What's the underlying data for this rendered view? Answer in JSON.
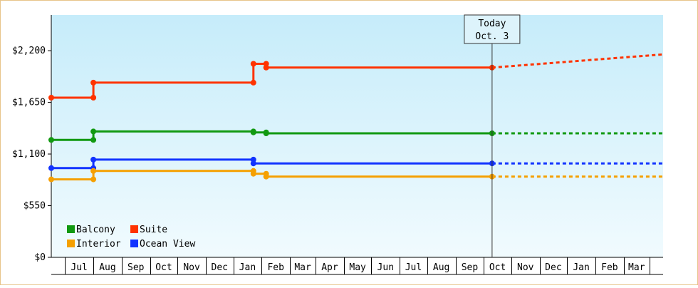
{
  "chart_data": {
    "type": "line",
    "title": "",
    "xlabel": "",
    "ylabel": "",
    "y_ticks": [
      "$0",
      "$550",
      "$1,100",
      "$1,650",
      "$2,200"
    ],
    "y_tick_values": [
      0,
      550,
      1100,
      1650,
      2200
    ],
    "ylim": [
      0,
      2580
    ],
    "x_range": [
      "2024-06-08",
      "2026-04-08"
    ],
    "months": [
      {
        "label": "Jul",
        "start": "2024-06-23",
        "end": "2024-07-24"
      },
      {
        "label": "Aug",
        "start": "2024-07-24",
        "end": "2024-08-24"
      },
      {
        "label": "Sep",
        "start": "2024-08-24",
        "end": "2024-09-24"
      },
      {
        "label": "Oct",
        "start": "2024-09-24",
        "end": "2024-10-24"
      },
      {
        "label": "Nov",
        "start": "2024-10-24",
        "end": "2024-11-24"
      },
      {
        "label": "Dec",
        "start": "2024-11-24",
        "end": "2024-12-24"
      },
      {
        "label": "Jan",
        "start": "2024-12-24",
        "end": "2025-01-24"
      },
      {
        "label": "Feb",
        "start": "2025-01-24",
        "end": "2025-02-24"
      },
      {
        "label": "Mar",
        "start": "2025-02-24",
        "end": "2025-03-24"
      },
      {
        "label": "Apr",
        "start": "2025-03-24",
        "end": "2025-04-24"
      },
      {
        "label": "May",
        "start": "2025-04-24",
        "end": "2025-05-24"
      },
      {
        "label": "Jun",
        "start": "2025-05-24",
        "end": "2025-06-24"
      },
      {
        "label": "Jul",
        "start": "2025-06-24",
        "end": "2025-07-24"
      },
      {
        "label": "Aug",
        "start": "2025-07-24",
        "end": "2025-08-24"
      },
      {
        "label": "Sep",
        "start": "2025-08-24",
        "end": "2025-09-24"
      },
      {
        "label": "Oct",
        "start": "2025-09-24",
        "end": "2025-10-24"
      },
      {
        "label": "Nov",
        "start": "2025-10-24",
        "end": "2025-11-24"
      },
      {
        "label": "Dec",
        "start": "2025-11-24",
        "end": "2025-12-24"
      },
      {
        "label": "Jan",
        "start": "2025-12-24",
        "end": "2026-01-24"
      },
      {
        "label": "Feb",
        "start": "2026-01-24",
        "end": "2026-02-24"
      },
      {
        "label": "Mar",
        "start": "2026-02-24",
        "end": "2026-03-24"
      }
    ],
    "today": {
      "date": "2025-10-03",
      "label_line1": "Today",
      "label_line2": "Oct. 3"
    },
    "grid": false,
    "legend_position": "bottom-left",
    "series": [
      {
        "name": "Suite",
        "color": "#ff3300",
        "points": [
          {
            "x": "2024-06-08",
            "y": 1700
          },
          {
            "x": "2024-07-24",
            "y": 1700
          },
          {
            "x": "2024-07-24",
            "y": 1860
          },
          {
            "x": "2025-01-15",
            "y": 1860
          },
          {
            "x": "2025-01-15",
            "y": 2060
          },
          {
            "x": "2025-01-29",
            "y": 2060
          },
          {
            "x": "2025-01-29",
            "y": 2020
          },
          {
            "x": "2025-10-03",
            "y": 2020
          }
        ],
        "projection": [
          {
            "x": "2025-10-03",
            "y": 2020
          },
          {
            "x": "2026-04-08",
            "y": 2160
          }
        ]
      },
      {
        "name": "Balcony",
        "color": "#119911",
        "points": [
          {
            "x": "2024-06-08",
            "y": 1250
          },
          {
            "x": "2024-07-24",
            "y": 1250
          },
          {
            "x": "2024-07-24",
            "y": 1340
          },
          {
            "x": "2025-01-15",
            "y": 1340
          },
          {
            "x": "2025-01-15",
            "y": 1330
          },
          {
            "x": "2025-01-29",
            "y": 1330
          },
          {
            "x": "2025-01-29",
            "y": 1320
          },
          {
            "x": "2025-10-03",
            "y": 1320
          }
        ],
        "projection": [
          {
            "x": "2025-10-03",
            "y": 1320
          },
          {
            "x": "2026-04-08",
            "y": 1320
          }
        ]
      },
      {
        "name": "Ocean View",
        "color": "#1133ff",
        "points": [
          {
            "x": "2024-06-08",
            "y": 950
          },
          {
            "x": "2024-07-24",
            "y": 950
          },
          {
            "x": "2024-07-24",
            "y": 1040
          },
          {
            "x": "2025-01-15",
            "y": 1040
          },
          {
            "x": "2025-01-15",
            "y": 1000
          },
          {
            "x": "2025-10-03",
            "y": 1000
          }
        ],
        "projection": [
          {
            "x": "2025-10-03",
            "y": 1000
          },
          {
            "x": "2026-04-08",
            "y": 1000
          }
        ]
      },
      {
        "name": "Interior",
        "color": "#f5a000",
        "points": [
          {
            "x": "2024-06-08",
            "y": 830
          },
          {
            "x": "2024-07-24",
            "y": 830
          },
          {
            "x": "2024-07-24",
            "y": 920
          },
          {
            "x": "2025-01-15",
            "y": 920
          },
          {
            "x": "2025-01-15",
            "y": 890
          },
          {
            "x": "2025-01-29",
            "y": 890
          },
          {
            "x": "2025-01-29",
            "y": 860
          },
          {
            "x": "2025-10-03",
            "y": 860
          }
        ],
        "projection": [
          {
            "x": "2025-10-03",
            "y": 860
          },
          {
            "x": "2026-04-08",
            "y": 860
          }
        ]
      }
    ],
    "legend": [
      {
        "name": "Balcony",
        "color": "#119911"
      },
      {
        "name": "Suite",
        "color": "#ff3300"
      },
      {
        "name": "Interior",
        "color": "#f5a000"
      },
      {
        "name": "Ocean View",
        "color": "#1133ff"
      }
    ]
  }
}
